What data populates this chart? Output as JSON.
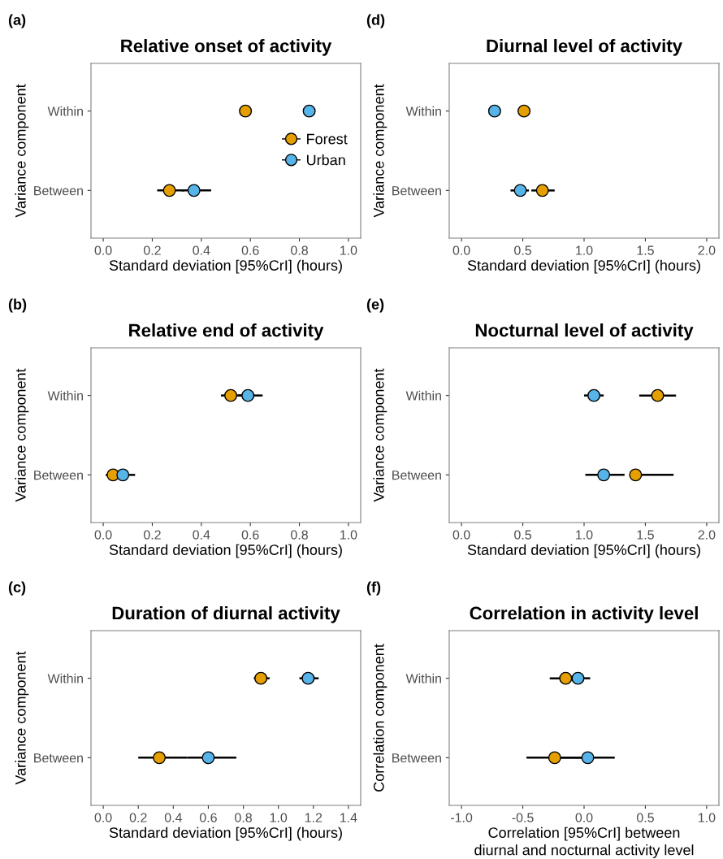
{
  "chart_data": [
    {
      "type": "scatter",
      "orientation": "horizontal",
      "title": "Relative onset of activity",
      "xlabel": "Standard deviation [95%CrI] (hours)",
      "ylabel": "Variance component",
      "annotations": [
        "(a)"
      ],
      "categories": [
        "Within",
        "Between"
      ],
      "xlim": [
        -0.05,
        1.05
      ],
      "xticks": [
        {
          "value": 0,
          "label": "0.0"
        },
        0.2,
        0.4,
        0.6,
        0.8,
        {
          "value": 1,
          "label": "1.0"
        }
      ],
      "legend": "right",
      "grid": false,
      "marker": "circle",
      "series": [
        {
          "name": "Forest",
          "color": "#e69f00",
          "values": [
            0.58,
            0.27
          ],
          "errors": [
            [
              0.57,
              0.6
            ],
            [
              0.22,
              0.33
            ]
          ]
        },
        {
          "name": "Urban",
          "color": "#56b4e9",
          "values": [
            0.84,
            0.37
          ],
          "errors": [
            [
              0.82,
              0.86
            ],
            [
              0.32,
              0.44
            ]
          ]
        }
      ]
    },
    {
      "type": "scatter",
      "orientation": "horizontal",
      "title": "Relative end of activity",
      "xlabel": "Standard deviation [95%CrI] (hours)",
      "ylabel": "Variance component",
      "annotations": [
        "(b)"
      ],
      "categories": [
        "Within",
        "Between"
      ],
      "xlim": [
        -0.05,
        1.05
      ],
      "xticks": [
        {
          "value": 0,
          "label": "0.0"
        },
        0.2,
        0.4,
        0.6,
        0.8,
        {
          "value": 1,
          "label": "1.0"
        }
      ],
      "grid": false,
      "marker": "circle",
      "series": [
        {
          "color": "#e69f00",
          "values": [
            0.52,
            0.04
          ],
          "errors": [
            [
              0.48,
              0.57
            ],
            [
              0.01,
              0.07
            ]
          ]
        },
        {
          "color": "#56b4e9",
          "values": [
            0.59,
            0.08
          ],
          "errors": [
            [
              0.55,
              0.65
            ],
            [
              0.05,
              0.13
            ]
          ]
        }
      ]
    },
    {
      "type": "scatter",
      "orientation": "horizontal",
      "title": "Duration of diurnal activity",
      "xlabel": "Standard deviation [95%CrI] (hours)",
      "ylabel": "Variance component",
      "annotations": [
        "(c)"
      ],
      "categories": [
        "Within",
        "Between"
      ],
      "xlim": [
        -0.07,
        1.47
      ],
      "xticks": [
        {
          "value": 0,
          "label": "0.0"
        },
        0.2,
        0.4,
        0.6,
        0.8,
        {
          "value": 1,
          "label": "1.0"
        },
        1.2,
        1.4
      ],
      "grid": false,
      "marker": "circle",
      "series": [
        {
          "color": "#e69f00",
          "values": [
            0.9,
            0.32
          ],
          "errors": [
            [
              0.86,
              0.95
            ],
            [
              0.2,
              0.48
            ]
          ]
        },
        {
          "color": "#56b4e9",
          "values": [
            1.17,
            0.6
          ],
          "errors": [
            [
              1.12,
              1.23
            ],
            [
              0.48,
              0.76
            ]
          ]
        }
      ]
    },
    {
      "type": "scatter",
      "orientation": "horizontal",
      "title": "Diurnal level of activity",
      "xlabel": "Standard deviation [95%CrI] (hours)",
      "ylabel": "Variance component",
      "annotations": [
        "(d)"
      ],
      "categories": [
        "Within",
        "Between"
      ],
      "xlim": [
        -0.1,
        2.1
      ],
      "xticks": [
        {
          "value": 0,
          "label": "0.0"
        },
        0.5,
        {
          "value": 1,
          "label": "1.0"
        },
        1.5,
        {
          "value": 2,
          "label": "2.0"
        }
      ],
      "grid": false,
      "marker": "circle",
      "series": [
        {
          "color": "#e69f00",
          "values": [
            0.51,
            0.66
          ],
          "errors": [
            null,
            [
              0.57,
              0.76
            ]
          ]
        },
        {
          "color": "#56b4e9",
          "values": [
            0.27,
            0.48
          ],
          "errors": [
            null,
            [
              0.4,
              0.55
            ]
          ]
        }
      ]
    },
    {
      "type": "scatter",
      "orientation": "horizontal",
      "title": "Nocturnal level of activity",
      "xlabel": "Standard deviation [95%CrI] (hours)",
      "ylabel": "Variance component",
      "annotations": [
        "(e)"
      ],
      "categories": [
        "Within",
        "Between"
      ],
      "xlim": [
        -0.1,
        2.1
      ],
      "xticks": [
        {
          "value": 0,
          "label": "0.0"
        },
        0.5,
        {
          "value": 1,
          "label": "1.0"
        },
        1.5,
        {
          "value": 2,
          "label": "2.0"
        }
      ],
      "grid": false,
      "marker": "circle",
      "series": [
        {
          "color": "#e69f00",
          "values": [
            1.6,
            1.42
          ],
          "errors": [
            [
              1.45,
              1.75
            ],
            [
              1.42,
              1.73
            ]
          ]
        },
        {
          "color": "#56b4e9",
          "values": [
            1.08,
            1.16
          ],
          "errors": [
            [
              1.0,
              1.16
            ],
            [
              1.01,
              1.33
            ]
          ]
        }
      ]
    },
    {
      "type": "scatter",
      "orientation": "horizontal",
      "title": "Correlation in activity level",
      "xlabel": "Correlation [95%CrI] between\ndiurnal and nocturnal activity level",
      "ylabel": "Correlation component",
      "annotations": [
        "(f)"
      ],
      "categories": [
        "Within",
        "Between"
      ],
      "xlim": [
        -1.1,
        1.1
      ],
      "xticks": [
        {
          "value": -1,
          "label": "-1.0"
        },
        -0.5,
        {
          "value": 0,
          "label": "0.0"
        },
        0.5,
        {
          "value": 1,
          "label": "1.0"
        }
      ],
      "grid": false,
      "marker": "circle",
      "series": [
        {
          "color": "#e69f00",
          "values": [
            -0.15,
            -0.24
          ],
          "errors": [
            [
              -0.28,
              -0.02
            ],
            [
              -0.47,
              0.0
            ]
          ]
        },
        {
          "color": "#56b4e9",
          "values": [
            -0.05,
            0.03
          ],
          "errors": [
            [
              -0.05,
              0.05
            ],
            [
              -0.2,
              0.25
            ]
          ]
        }
      ]
    }
  ]
}
